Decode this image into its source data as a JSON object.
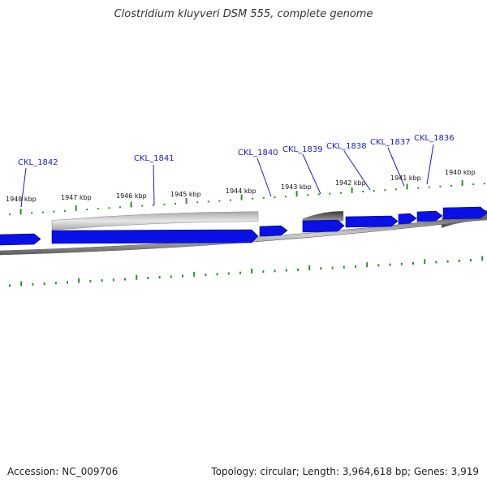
{
  "title": "Clostridium kluyveri DSM 555, complete genome",
  "accession": "Accession: NC_009706",
  "topology": "Topology: circular; Length: 3,964,618 bp; Genes: 3,919",
  "colors": {
    "tick": "#2e8b2e",
    "gene": "#0a10e6",
    "gene_edge": "#000a80",
    "label": "#1a1acc",
    "backbone": "#7a7a7a",
    "band_light": "#c4c4c4",
    "band_dark": "#555555"
  },
  "scale_labels": [
    "1948 kbp",
    "1947 kbp",
    "1946 kbp",
    "1945 kbp",
    "1944 kbp",
    "1943 kbp",
    "1942 kbp",
    "1941 kbp",
    "1940 kbp"
  ],
  "gene_labels": [
    "CKL_1842",
    "CKL_1841",
    "CKL_1840",
    "CKL_1839",
    "CKL_1838",
    "CKL_1837",
    "CKL_1836"
  ]
}
